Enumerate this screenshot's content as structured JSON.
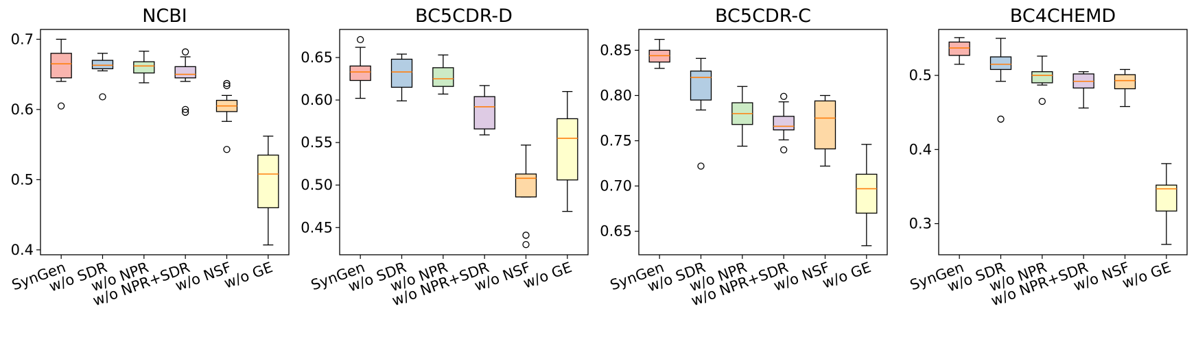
{
  "chart_data": [
    {
      "type": "box",
      "title": "NCBI",
      "categories": [
        "SynGen",
        "w/o SDR",
        "w/o NPR",
        "w/o NPR+SDR",
        "w/o NSF",
        "w/o GE"
      ],
      "ylim": [
        0.393,
        0.714
      ],
      "yticks": [
        0.4,
        0.5,
        0.6,
        0.7
      ],
      "ytick_labels": [
        "0.4",
        "0.5",
        "0.6",
        "0.7"
      ],
      "boxes": [
        {
          "whislo": 0.64,
          "q1": 0.645,
          "med": 0.665,
          "q3": 0.68,
          "whishi": 0.7,
          "fliers": [
            0.605
          ]
        },
        {
          "whislo": 0.655,
          "q1": 0.658,
          "med": 0.663,
          "q3": 0.67,
          "whishi": 0.68,
          "fliers": [
            0.618
          ]
        },
        {
          "whislo": 0.638,
          "q1": 0.652,
          "med": 0.662,
          "q3": 0.668,
          "whishi": 0.683,
          "fliers": []
        },
        {
          "whislo": 0.64,
          "q1": 0.645,
          "med": 0.65,
          "q3": 0.661,
          "whishi": 0.675,
          "fliers": [
            0.682,
            0.6,
            0.596
          ]
        },
        {
          "whislo": 0.583,
          "q1": 0.597,
          "med": 0.605,
          "q3": 0.613,
          "whishi": 0.62,
          "fliers": [
            0.637,
            0.634,
            0.543
          ]
        },
        {
          "whislo": 0.407,
          "q1": 0.46,
          "med": 0.508,
          "q3": 0.535,
          "whishi": 0.562,
          "fliers": []
        }
      ]
    },
    {
      "type": "box",
      "title": "BC5CDR-D",
      "categories": [
        "SynGen",
        "w/o SDR",
        "w/o NPR",
        "w/o NPR+SDR",
        "w/o NSF",
        "w/o GE"
      ],
      "ylim": [
        0.418,
        0.683
      ],
      "yticks": [
        0.45,
        0.5,
        0.55,
        0.6,
        0.65
      ],
      "ytick_labels": [
        "0.45",
        "0.50",
        "0.55",
        "0.60",
        "0.65"
      ],
      "boxes": [
        {
          "whislo": 0.602,
          "q1": 0.623,
          "med": 0.633,
          "q3": 0.64,
          "whishi": 0.662,
          "fliers": [
            0.671
          ]
        },
        {
          "whislo": 0.599,
          "q1": 0.615,
          "med": 0.633,
          "q3": 0.648,
          "whishi": 0.654,
          "fliers": []
        },
        {
          "whislo": 0.607,
          "q1": 0.616,
          "med": 0.625,
          "q3": 0.638,
          "whishi": 0.653,
          "fliers": []
        },
        {
          "whislo": 0.559,
          "q1": 0.566,
          "med": 0.592,
          "q3": 0.604,
          "whishi": 0.617,
          "fliers": []
        },
        {
          "whislo": 0.486,
          "q1": 0.486,
          "med": 0.508,
          "q3": 0.513,
          "whishi": 0.547,
          "fliers": [
            0.441,
            0.43
          ]
        },
        {
          "whislo": 0.469,
          "q1": 0.506,
          "med": 0.555,
          "q3": 0.578,
          "whishi": 0.61,
          "fliers": []
        }
      ]
    },
    {
      "type": "box",
      "title": "BC5CDR-C",
      "categories": [
        "SynGen",
        "w/o SDR",
        "w/o NPR",
        "w/o NPR+SDR",
        "w/o NSF",
        "w/o GE"
      ],
      "ylim": [
        0.624,
        0.873
      ],
      "yticks": [
        0.65,
        0.7,
        0.75,
        0.8,
        0.85
      ],
      "ytick_labels": [
        "0.65",
        "0.70",
        "0.75",
        "0.80",
        "0.85"
      ],
      "boxes": [
        {
          "whislo": 0.83,
          "q1": 0.837,
          "med": 0.844,
          "q3": 0.85,
          "whishi": 0.862,
          "fliers": []
        },
        {
          "whislo": 0.784,
          "q1": 0.795,
          "med": 0.82,
          "q3": 0.827,
          "whishi": 0.841,
          "fliers": [
            0.722
          ]
        },
        {
          "whislo": 0.744,
          "q1": 0.768,
          "med": 0.78,
          "q3": 0.792,
          "whishi": 0.81,
          "fliers": []
        },
        {
          "whislo": 0.751,
          "q1": 0.762,
          "med": 0.766,
          "q3": 0.777,
          "whishi": 0.793,
          "fliers": [
            0.799,
            0.74
          ]
        },
        {
          "whislo": 0.722,
          "q1": 0.741,
          "med": 0.775,
          "q3": 0.794,
          "whishi": 0.8,
          "fliers": []
        },
        {
          "whislo": 0.634,
          "q1": 0.67,
          "med": 0.697,
          "q3": 0.713,
          "whishi": 0.746,
          "fliers": []
        }
      ]
    },
    {
      "type": "box",
      "title": "BC4CHEMD",
      "categories": [
        "SynGen",
        "w/o SDR",
        "w/o NPR",
        "w/o NPR+SDR",
        "w/o NSF",
        "w/o GE"
      ],
      "ylim": [
        0.258,
        0.562
      ],
      "yticks": [
        0.3,
        0.4,
        0.5
      ],
      "ytick_labels": [
        "0.3",
        "0.4",
        "0.5"
      ],
      "boxes": [
        {
          "whislo": 0.515,
          "q1": 0.527,
          "med": 0.537,
          "q3": 0.545,
          "whishi": 0.551,
          "fliers": []
        },
        {
          "whislo": 0.492,
          "q1": 0.508,
          "med": 0.515,
          "q3": 0.525,
          "whishi": 0.55,
          "fliers": [
            0.441
          ]
        },
        {
          "whislo": 0.487,
          "q1": 0.49,
          "med": 0.5,
          "q3": 0.505,
          "whishi": 0.526,
          "fliers": [
            0.465
          ]
        },
        {
          "whislo": 0.456,
          "q1": 0.483,
          "med": 0.492,
          "q3": 0.502,
          "whishi": 0.505,
          "fliers": []
        },
        {
          "whislo": 0.458,
          "q1": 0.482,
          "med": 0.493,
          "q3": 0.501,
          "whishi": 0.508,
          "fliers": []
        },
        {
          "whislo": 0.272,
          "q1": 0.317,
          "med": 0.347,
          "q3": 0.352,
          "whishi": 0.381,
          "fliers": []
        }
      ]
    }
  ],
  "box_colors": [
    "#f9b4ae",
    "#b3cde3",
    "#ccebc5",
    "#decbe4",
    "#fed9a6",
    "#ffffcc"
  ],
  "median_color": "#ff7f0e"
}
